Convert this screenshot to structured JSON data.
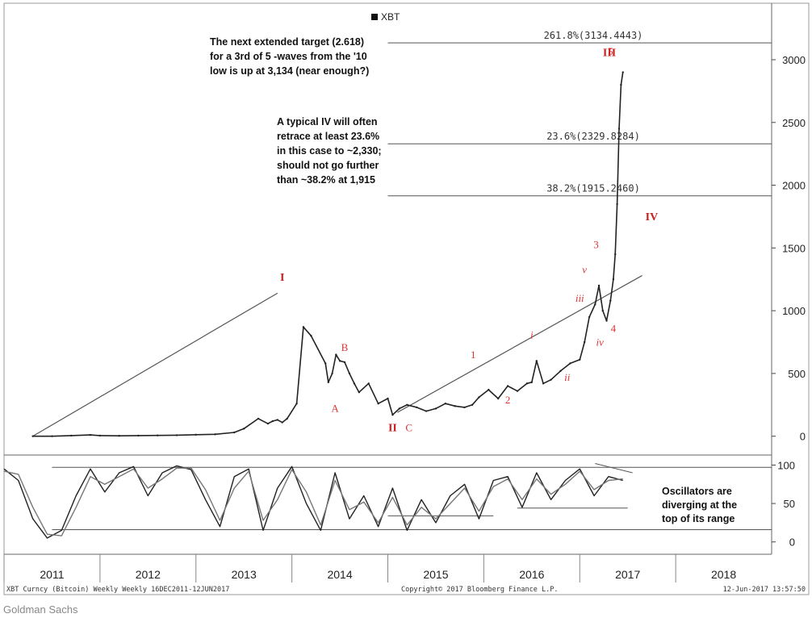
{
  "legend": {
    "label": "XBT"
  },
  "annotations": {
    "target": [
      "The  next extended target (2.618)",
      "for a 3rd of 5 -waves from the '10",
      "low is up at 3,134 (near enough?)"
    ],
    "retrace": [
      "A typical IV will often",
      "retrace at least 23.6%",
      "in this case to ~2,330;",
      "should not go further",
      "than ~38.2%  at  1,915"
    ],
    "oscillator": [
      "Oscillators are",
      "diverging at the",
      "top of its range"
    ]
  },
  "fib_levels": [
    {
      "label": "261.8%(3134.4443)",
      "value": 3134.4443
    },
    {
      "label": "23.6%(2329.8284)",
      "value": 2329.8284
    },
    {
      "label": "38.2%(1915.2460)",
      "value": 1915.246
    }
  ],
  "wave_labels": {
    "big": [
      {
        "text": "I",
        "x": 2013.4,
        "y": 1240
      },
      {
        "text": "II",
        "x": 2014.55,
        "y": 40
      },
      {
        "text": "III",
        "x": 2016.81,
        "y": 3030
      },
      {
        "text": "IV",
        "x": 2017.25,
        "y": 1720
      }
    ],
    "small": [
      {
        "text": "A",
        "x": 2013.95,
        "y": 195
      },
      {
        "text": "B",
        "x": 2014.05,
        "y": 680
      },
      {
        "text": "C",
        "x": 2014.72,
        "y": 40
      },
      {
        "text": "1",
        "x": 2015.39,
        "y": 620
      },
      {
        "text": "2",
        "x": 2015.75,
        "y": 260
      },
      {
        "text": "i",
        "x": 2016.0,
        "y": 780
      },
      {
        "text": "ii",
        "x": 2016.37,
        "y": 440
      },
      {
        "text": "iii",
        "x": 2016.5,
        "y": 1070
      },
      {
        "text": "iv",
        "x": 2016.71,
        "y": 720
      },
      {
        "text": "v",
        "x": 2016.55,
        "y": 1300
      },
      {
        "text": "3",
        "x": 2016.67,
        "y": 1500
      },
      {
        "text": "4",
        "x": 2016.85,
        "y": 830
      },
      {
        "text": "5",
        "x": 2016.82,
        "y": 3040
      }
    ]
  },
  "footer": {
    "left": "XBT Curncy (Bitcoin) Weekly  Weekly 16DEC2011-12JUN2017",
    "center": "Copyright© 2017 Bloomberg Finance L.P.",
    "right": "12-Jun-2017  13:57:50"
  },
  "credit": "Goldman Sachs",
  "chart_data": [
    {
      "type": "line",
      "title": "",
      "xlabel": "",
      "ylabel": "",
      "xlim": [
        2010.5,
        2018.5
      ],
      "ylim": [
        -150,
        3450
      ],
      "yticks": [
        0,
        500,
        1000,
        1500,
        2000,
        2500,
        3000
      ],
      "xticks": [
        "2011",
        "2012",
        "2013",
        "2014",
        "2015",
        "2016",
        "2017",
        "2018"
      ],
      "series": [
        {
          "name": "XBT",
          "x": [
            2010.8,
            2011.0,
            2011.2,
            2011.4,
            2011.5,
            2011.7,
            2011.9,
            2012.1,
            2012.3,
            2012.5,
            2012.7,
            2012.9,
            2013.0,
            2013.15,
            2013.25,
            2013.3,
            2013.35,
            2013.4,
            2013.45,
            2013.55,
            2013.62,
            2013.7,
            2013.85,
            2013.88,
            2013.92,
            2013.96,
            2014.0,
            2014.05,
            2014.1,
            2014.15,
            2014.2,
            2014.3,
            2014.4,
            2014.5,
            2014.55,
            2014.62,
            2014.7,
            2014.8,
            2014.9,
            2015.0,
            2015.1,
            2015.2,
            2015.3,
            2015.38,
            2015.45,
            2015.55,
            2015.65,
            2015.75,
            2015.85,
            2015.95,
            2016.0,
            2016.05,
            2016.12,
            2016.2,
            2016.3,
            2016.4,
            2016.5,
            2016.55,
            2016.6,
            2016.66,
            2016.7,
            2016.74,
            2016.78,
            2016.82,
            2016.85,
            2016.87,
            2016.89,
            2016.91,
            2016.93,
            2016.95
          ],
          "values": [
            0,
            0,
            5,
            10,
            5,
            3,
            5,
            6,
            8,
            12,
            15,
            30,
            60,
            140,
            100,
            120,
            130,
            110,
            140,
            260,
            870,
            800,
            580,
            430,
            500,
            650,
            600,
            590,
            500,
            420,
            350,
            420,
            260,
            300,
            170,
            220,
            250,
            230,
            200,
            220,
            260,
            240,
            230,
            250,
            310,
            370,
            300,
            400,
            360,
            420,
            430,
            600,
            420,
            450,
            520,
            580,
            610,
            750,
            950,
            1050,
            1200,
            1000,
            920,
            1080,
            1250,
            1450,
            1850,
            2450,
            2800,
            2900
          ]
        },
        {
          "name": "",
          "x": [
            2010.8,
            2013.35
          ],
          "values": [
            0,
            1140
          ]
        },
        {
          "name": "",
          "x": [
            2014.6,
            2017.15
          ],
          "values": [
            190,
            1280
          ]
        }
      ]
    },
    {
      "type": "line",
      "title": "",
      "xlim": [
        2010.5,
        2018.5
      ],
      "ylim": [
        -15,
        112
      ],
      "yticks": [
        0,
        50,
        100
      ],
      "series": [
        {
          "name": "",
          "x": [
            2010.5,
            2010.65,
            2010.8,
            2010.95,
            2011.1,
            2011.25,
            2011.4,
            2011.55,
            2011.7,
            2011.85,
            2012.0,
            2012.15,
            2012.3,
            2012.45,
            2012.6,
            2012.75,
            2012.9,
            2013.05,
            2013.2,
            2013.35,
            2013.5,
            2013.65,
            2013.8,
            2013.95,
            2014.1,
            2014.25,
            2014.4,
            2014.55,
            2014.7,
            2014.85,
            2015.0,
            2015.15,
            2015.3,
            2015.45,
            2015.6,
            2015.75,
            2015.9,
            2016.05,
            2016.2,
            2016.35,
            2016.5,
            2016.65,
            2016.8,
            2016.95
          ],
          "values": [
            95,
            80,
            30,
            5,
            15,
            60,
            95,
            65,
            90,
            98,
            60,
            90,
            99,
            94,
            55,
            20,
            85,
            95,
            15,
            70,
            98,
            50,
            15,
            90,
            30,
            60,
            20,
            70,
            15,
            55,
            25,
            60,
            75,
            30,
            80,
            85,
            45,
            90,
            55,
            80,
            95,
            60,
            85,
            80
          ]
        },
        {
          "name": "",
          "x": [
            2010.5,
            2010.65,
            2010.8,
            2010.95,
            2011.1,
            2011.25,
            2011.4,
            2011.55,
            2011.7,
            2011.85,
            2012.0,
            2012.15,
            2012.3,
            2012.45,
            2012.6,
            2012.75,
            2012.9,
            2013.05,
            2013.2,
            2013.35,
            2013.5,
            2013.65,
            2013.8,
            2013.95,
            2014.1,
            2014.25,
            2014.4,
            2014.55,
            2014.7,
            2014.85,
            2015.0,
            2015.15,
            2015.3,
            2015.45,
            2015.6,
            2015.75,
            2015.9,
            2016.05,
            2016.2,
            2016.35,
            2016.5,
            2016.65,
            2016.8,
            2016.95
          ],
          "values": [
            92,
            88,
            45,
            10,
            8,
            45,
            85,
            75,
            85,
            95,
            70,
            82,
            96,
            96,
            68,
            28,
            70,
            92,
            28,
            55,
            94,
            65,
            22,
            80,
            42,
            52,
            25,
            58,
            22,
            45,
            30,
            50,
            70,
            40,
            72,
            82,
            55,
            82,
            62,
            75,
            92,
            68,
            80,
            82
          ]
        }
      ],
      "reference_lines": [
        {
          "x": [
            2011.0,
            2018.5
          ],
          "values": [
            97,
            97
          ]
        },
        {
          "x": [
            2011.0,
            2018.5
          ],
          "values": [
            16,
            16
          ]
        },
        {
          "x": [
            2014.5,
            2015.6
          ],
          "values": [
            34,
            34
          ]
        },
        {
          "x": [
            2015.85,
            2017.0
          ],
          "values": [
            44,
            44
          ]
        },
        {
          "x": [
            2016.66,
            2017.05
          ],
          "values": [
            102,
            90
          ]
        }
      ]
    }
  ]
}
